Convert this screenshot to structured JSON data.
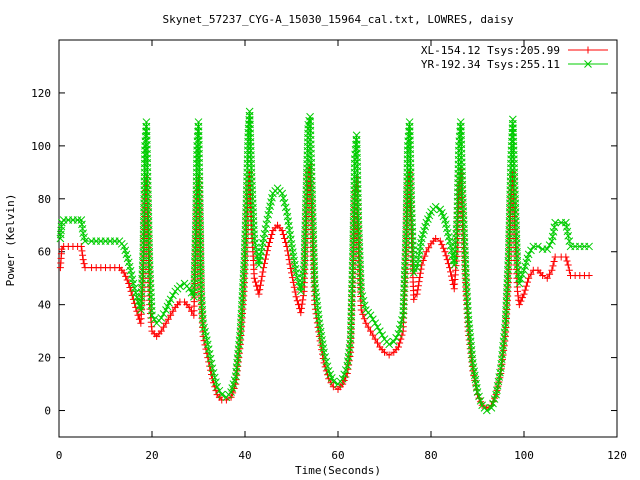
{
  "chart_data": {
    "type": "line",
    "title": "Skynet_57237_CYG-A_15030_15964_cal.txt, LOWRES, daisy",
    "xlabel": "Time(Seconds)",
    "ylabel": "Power (Kelvin)",
    "xlim": [
      0,
      120
    ],
    "ylim": [
      -10,
      140
    ],
    "xticks": [
      "0",
      "20",
      "40",
      "60",
      "80",
      "100",
      "120"
    ],
    "yticks": [
      "0",
      "20",
      "40",
      "60",
      "80",
      "100",
      "120"
    ],
    "grid": false,
    "legend_position": "top-right",
    "series": [
      {
        "name": "XL-154.12 Tsys:205.99",
        "color": "#ff0000",
        "marker": "plus",
        "points": [
          [
            0.3,
            54
          ],
          [
            0.6,
            61
          ],
          [
            1,
            62
          ],
          [
            2,
            62
          ],
          [
            3,
            62
          ],
          [
            4,
            62
          ],
          [
            4.8,
            62
          ],
          [
            5.2,
            57
          ],
          [
            5.6,
            54
          ],
          [
            7,
            54
          ],
          [
            9,
            54
          ],
          [
            11,
            54
          ],
          [
            13,
            54
          ],
          [
            14,
            52
          ],
          [
            15,
            48
          ],
          [
            16,
            42
          ],
          [
            17,
            36
          ],
          [
            17.6,
            33
          ],
          [
            18.1,
            50
          ],
          [
            18.5,
            80
          ],
          [
            18.8,
            88
          ],
          [
            19.1,
            70
          ],
          [
            19.5,
            40
          ],
          [
            20,
            30
          ],
          [
            21,
            28
          ],
          [
            22,
            30
          ],
          [
            23,
            33
          ],
          [
            24,
            36
          ],
          [
            25,
            39
          ],
          [
            26,
            41
          ],
          [
            27,
            41
          ],
          [
            28,
            39
          ],
          [
            29,
            36
          ],
          [
            29.4,
            60
          ],
          [
            29.7,
            80
          ],
          [
            30,
            88
          ],
          [
            30.3,
            70
          ],
          [
            30.6,
            40
          ],
          [
            31,
            28
          ],
          [
            32,
            20
          ],
          [
            33,
            12
          ],
          [
            34,
            6
          ],
          [
            35,
            4
          ],
          [
            36,
            4
          ],
          [
            37,
            5
          ],
          [
            38,
            10
          ],
          [
            39,
            25
          ],
          [
            39.8,
            45
          ],
          [
            40.3,
            65
          ],
          [
            40.7,
            85
          ],
          [
            41,
            90
          ],
          [
            41.4,
            70
          ],
          [
            42,
            50
          ],
          [
            43,
            44
          ],
          [
            44,
            54
          ],
          [
            45,
            62
          ],
          [
            46,
            68
          ],
          [
            47,
            70
          ],
          [
            48,
            68
          ],
          [
            49,
            62
          ],
          [
            50,
            52
          ],
          [
            51,
            43
          ],
          [
            52,
            37
          ],
          [
            52.7,
            45
          ],
          [
            53.2,
            70
          ],
          [
            53.6,
            90
          ],
          [
            54,
            93
          ],
          [
            54.4,
            70
          ],
          [
            55,
            40
          ],
          [
            56,
            28
          ],
          [
            57,
            18
          ],
          [
            58,
            12
          ],
          [
            59,
            9
          ],
          [
            60,
            8
          ],
          [
            61,
            10
          ],
          [
            62,
            14
          ],
          [
            62.7,
            22
          ],
          [
            63.2,
            50
          ],
          [
            63.6,
            80
          ],
          [
            64,
            88
          ],
          [
            64.4,
            60
          ],
          [
            65,
            38
          ],
          [
            66,
            33
          ],
          [
            67,
            30
          ],
          [
            68,
            27
          ],
          [
            69,
            24
          ],
          [
            70,
            22
          ],
          [
            71,
            21
          ],
          [
            72,
            22
          ],
          [
            73,
            24
          ],
          [
            74,
            30
          ],
          [
            74.6,
            55
          ],
          [
            75,
            85
          ],
          [
            75.4,
            90
          ],
          [
            75.8,
            65
          ],
          [
            76.3,
            42
          ],
          [
            77,
            44
          ],
          [
            78,
            55
          ],
          [
            79,
            60
          ],
          [
            80,
            63
          ],
          [
            81,
            65
          ],
          [
            82,
            64
          ],
          [
            83,
            60
          ],
          [
            84,
            54
          ],
          [
            85,
            46
          ],
          [
            85.6,
            60
          ],
          [
            86,
            85
          ],
          [
            86.4,
            91
          ],
          [
            86.8,
            70
          ],
          [
            87.5,
            45
          ],
          [
            88,
            30
          ],
          [
            89,
            15
          ],
          [
            90,
            6
          ],
          [
            91,
            2
          ],
          [
            92,
            1
          ],
          [
            93,
            2
          ],
          [
            94,
            6
          ],
          [
            95,
            14
          ],
          [
            96,
            28
          ],
          [
            96.7,
            50
          ],
          [
            97.2,
            80
          ],
          [
            97.6,
            90
          ],
          [
            98,
            70
          ],
          [
            98.6,
            45
          ],
          [
            99,
            40
          ],
          [
            100,
            44
          ],
          [
            101,
            50
          ],
          [
            102,
            53
          ],
          [
            103,
            53
          ],
          [
            104,
            51
          ],
          [
            105,
            50
          ],
          [
            106,
            53
          ],
          [
            106.7,
            58
          ],
          [
            108,
            58
          ],
          [
            109,
            58
          ],
          [
            109.5,
            55
          ],
          [
            110,
            51
          ],
          [
            112,
            51
          ],
          [
            114,
            51
          ]
        ]
      },
      {
        "name": "YR-192.34 Tsys:255.11",
        "color": "#00cc00",
        "marker": "x",
        "points": [
          [
            0.3,
            65
          ],
          [
            0.6,
            71
          ],
          [
            1,
            72
          ],
          [
            2,
            72
          ],
          [
            3,
            72
          ],
          [
            4,
            72
          ],
          [
            4.8,
            72
          ],
          [
            5.2,
            67
          ],
          [
            5.6,
            64
          ],
          [
            7,
            64
          ],
          [
            9,
            64
          ],
          [
            11,
            64
          ],
          [
            13,
            64
          ],
          [
            14,
            62
          ],
          [
            15,
            56
          ],
          [
            16,
            48
          ],
          [
            17,
            41
          ],
          [
            17.6,
            38
          ],
          [
            18.1,
            60
          ],
          [
            18.5,
            100
          ],
          [
            18.8,
            109
          ],
          [
            19.1,
            85
          ],
          [
            19.5,
            55
          ],
          [
            20,
            36
          ],
          [
            21,
            33
          ],
          [
            22,
            35
          ],
          [
            23,
            38
          ],
          [
            24,
            42
          ],
          [
            25,
            45
          ],
          [
            26,
            47
          ],
          [
            27,
            48
          ],
          [
            28,
            46
          ],
          [
            29,
            43
          ],
          [
            29.4,
            70
          ],
          [
            29.7,
            100
          ],
          [
            30,
            109
          ],
          [
            30.3,
            80
          ],
          [
            30.6,
            45
          ],
          [
            31,
            33
          ],
          [
            32,
            25
          ],
          [
            33,
            16
          ],
          [
            34,
            9
          ],
          [
            35,
            6
          ],
          [
            36,
            5
          ],
          [
            37,
            7
          ],
          [
            38,
            13
          ],
          [
            39,
            30
          ],
          [
            39.8,
            55
          ],
          [
            40.3,
            80
          ],
          [
            40.7,
            105
          ],
          [
            41,
            113
          ],
          [
            41.4,
            90
          ],
          [
            42,
            65
          ],
          [
            43,
            55
          ],
          [
            44,
            65
          ],
          [
            45,
            74
          ],
          [
            46,
            82
          ],
          [
            47,
            84
          ],
          [
            48,
            82
          ],
          [
            49,
            75
          ],
          [
            50,
            63
          ],
          [
            51,
            52
          ],
          [
            52,
            45
          ],
          [
            52.7,
            55
          ],
          [
            53.2,
            85
          ],
          [
            53.6,
            108
          ],
          [
            54,
            111
          ],
          [
            54.4,
            85
          ],
          [
            55,
            48
          ],
          [
            56,
            33
          ],
          [
            57,
            22
          ],
          [
            58,
            15
          ],
          [
            59,
            11
          ],
          [
            60,
            10
          ],
          [
            61,
            12
          ],
          [
            62,
            17
          ],
          [
            62.7,
            27
          ],
          [
            63.2,
            60
          ],
          [
            63.6,
            95
          ],
          [
            64,
            104
          ],
          [
            64.4,
            72
          ],
          [
            65,
            45
          ],
          [
            66,
            38
          ],
          [
            67,
            36
          ],
          [
            68,
            33
          ],
          [
            69,
            30
          ],
          [
            70,
            27
          ],
          [
            71,
            25
          ],
          [
            72,
            26
          ],
          [
            73,
            29
          ],
          [
            74,
            36
          ],
          [
            74.6,
            65
          ],
          [
            75,
            100
          ],
          [
            75.4,
            109
          ],
          [
            75.8,
            78
          ],
          [
            76.3,
            52
          ],
          [
            77,
            54
          ],
          [
            78,
            65
          ],
          [
            79,
            71
          ],
          [
            80,
            75
          ],
          [
            81,
            77
          ],
          [
            82,
            76
          ],
          [
            83,
            72
          ],
          [
            84,
            64
          ],
          [
            85,
            55
          ],
          [
            85.6,
            72
          ],
          [
            86,
            100
          ],
          [
            86.4,
            109
          ],
          [
            86.8,
            82
          ],
          [
            87.5,
            52
          ],
          [
            88,
            36
          ],
          [
            89,
            18
          ],
          [
            90,
            7
          ],
          [
            91,
            2
          ],
          [
            92,
            0
          ],
          [
            93,
            1
          ],
          [
            94,
            6
          ],
          [
            95,
            16
          ],
          [
            96,
            33
          ],
          [
            96.7,
            60
          ],
          [
            97.2,
            95
          ],
          [
            97.6,
            110
          ],
          [
            98,
            85
          ],
          [
            98.6,
            55
          ],
          [
            99,
            48
          ],
          [
            100,
            53
          ],
          [
            101,
            59
          ],
          [
            102,
            62
          ],
          [
            103,
            62
          ],
          [
            104,
            61
          ],
          [
            105,
            61
          ],
          [
            106,
            64
          ],
          [
            106.7,
            71
          ],
          [
            108,
            71
          ],
          [
            109,
            71
          ],
          [
            109.5,
            66
          ],
          [
            110,
            62
          ],
          [
            112,
            62
          ],
          [
            114,
            62
          ]
        ]
      }
    ]
  }
}
